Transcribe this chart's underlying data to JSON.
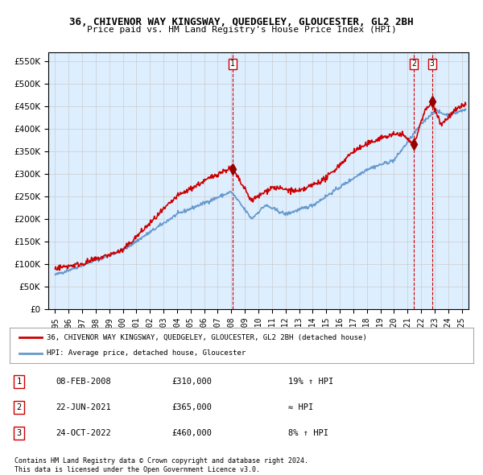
{
  "title": "36, CHIVENOR WAY KINGSWAY, QUEDGELEY, GLOUCESTER, GL2 2BH",
  "subtitle": "Price paid vs. HM Land Registry's House Price Index (HPI)",
  "xlabel": "",
  "ylabel": "",
  "ylim": [
    0,
    570000
  ],
  "yticks": [
    0,
    50000,
    100000,
    150000,
    200000,
    250000,
    300000,
    350000,
    400000,
    450000,
    500000,
    550000
  ],
  "ytick_labels": [
    "£0",
    "£50K",
    "£100K",
    "£150K",
    "£200K",
    "£250K",
    "£300K",
    "£350K",
    "£400K",
    "£450K",
    "£500K",
    "£550K"
  ],
  "xlim_start": 1994.5,
  "xlim_end": 2025.5,
  "xticks": [
    1995,
    1996,
    1997,
    1998,
    1999,
    2000,
    2001,
    2002,
    2003,
    2004,
    2005,
    2006,
    2007,
    2008,
    2009,
    2010,
    2011,
    2012,
    2013,
    2014,
    2015,
    2016,
    2017,
    2018,
    2019,
    2020,
    2021,
    2022,
    2023,
    2024,
    2025
  ],
  "grid_color": "#cccccc",
  "bg_color": "#ddeeff",
  "plot_bg": "#ddeeff",
  "hpi_color": "#6699cc",
  "price_color": "#cc0000",
  "sale_marker_color": "#990000",
  "dashed_line_color": "#cc0000",
  "legend_line1": "36, CHIVENOR WAY KINGSWAY, QUEDGELEY, GLOUCESTER, GL2 2BH (detached house)",
  "legend_line2": "HPI: Average price, detached house, Gloucester",
  "sale1_date": "08-FEB-2008",
  "sale1_year": 2008.1,
  "sale1_price": 310000,
  "sale1_label": "19% ↑ HPI",
  "sale2_date": "22-JUN-2021",
  "sale2_year": 2021.47,
  "sale2_price": 365000,
  "sale2_label": "≈ HPI",
  "sale3_date": "24-OCT-2022",
  "sale3_year": 2022.81,
  "sale3_price": 460000,
  "sale3_label": "8% ↑ HPI",
  "footer1": "Contains HM Land Registry data © Crown copyright and database right 2024.",
  "footer2": "This data is licensed under the Open Government Licence v3.0."
}
